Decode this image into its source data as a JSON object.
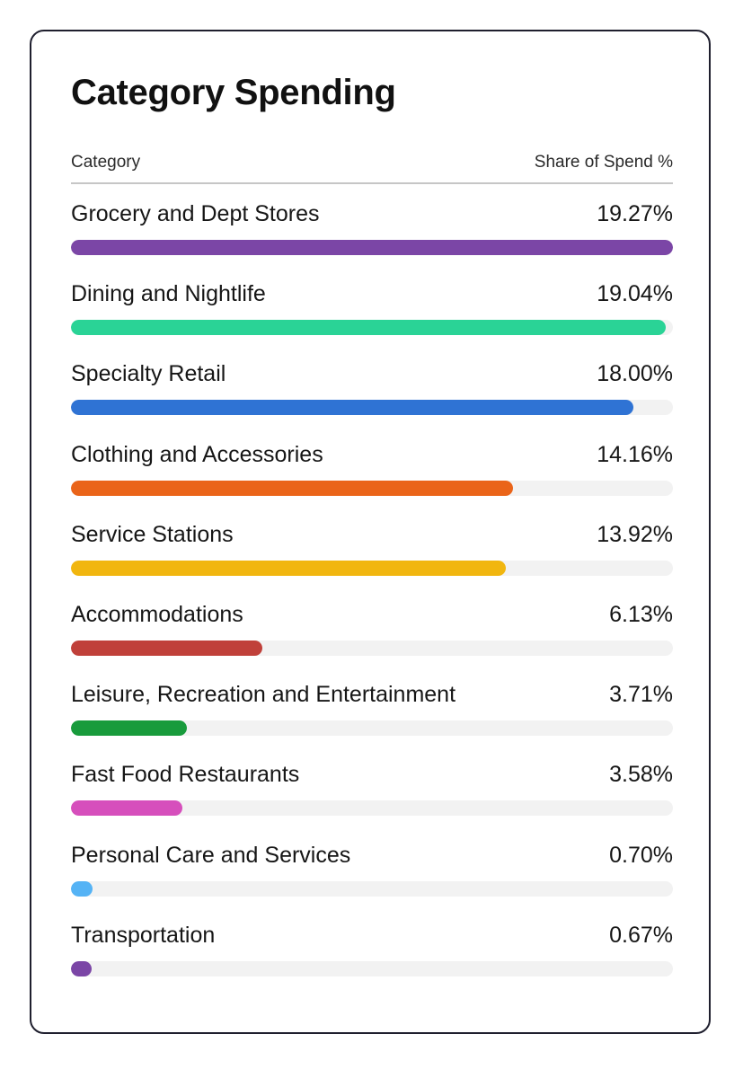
{
  "card": {
    "title": "Category Spending",
    "header_left": "Category",
    "header_right": "Share of Spend %"
  },
  "chart_data": {
    "type": "bar",
    "orientation": "horizontal",
    "title": "Category Spending",
    "xlabel": "Share of Spend %",
    "ylabel": "Category",
    "xlim": [
      0,
      19.27
    ],
    "categories": [
      "Grocery and Dept Stores",
      "Dining and Nightlife",
      "Specialty Retail",
      "Clothing and Accessories",
      "Service Stations",
      "Accommodations",
      "Leisure, Recreation and Entertainment",
      "Fast Food Restaurants",
      "Personal Care and Services",
      "Transportation"
    ],
    "values": [
      19.27,
      19.04,
      18.0,
      14.16,
      13.92,
      6.13,
      3.71,
      3.58,
      0.7,
      0.67
    ],
    "value_labels": [
      "19.27%",
      "19.04%",
      "18.00%",
      "14.16%",
      "13.92%",
      "6.13%",
      "3.71%",
      "3.58%",
      "0.70%",
      "0.67%"
    ],
    "colors": [
      "#7b46a6",
      "#2ad396",
      "#2f73d4",
      "#ea6419",
      "#f1b60f",
      "#c0403a",
      "#189b3c",
      "#d64fbc",
      "#55b3f5",
      "#7b46a6"
    ],
    "track_color": "#f2f2f2",
    "grid": false,
    "legend": "none"
  }
}
